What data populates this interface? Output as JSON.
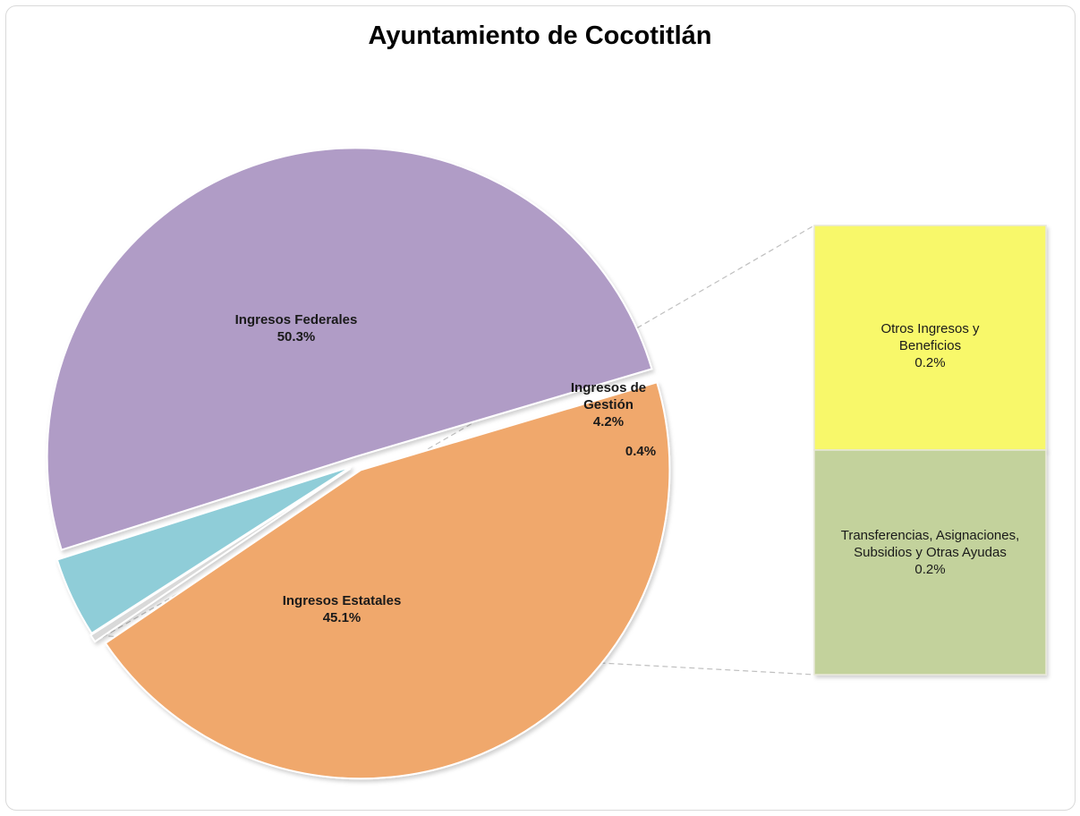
{
  "chart_data": {
    "type": "pie",
    "title": "Ayuntamiento de Cocotitlán",
    "slices": [
      {
        "name": "Ingresos Federales",
        "value": 50.3,
        "label": "50.3%",
        "color": "#b09cc6"
      },
      {
        "name": "Ingresos de Gestión",
        "value": 4.2,
        "label": "4.2%",
        "color": "#8fcdd8"
      },
      {
        "name": "",
        "value": 0.4,
        "label": "0.4%",
        "color": "#d9d9d9"
      },
      {
        "name": "Ingresos Estatales",
        "value": 45.1,
        "label": "45.1%",
        "color": "#f0a86c"
      }
    ],
    "breakdown": {
      "of_slice": "0.4%",
      "type": "stacked-bar",
      "items": [
        {
          "name": "Otros Ingresos y Beneficios",
          "value": 0.2,
          "label": "0.2%",
          "color": "#f8f86a"
        },
        {
          "name": "Transferencias, Asignaciones, Subsidios y Otras Ayudas",
          "value": 0.2,
          "label": "0.2%",
          "color": "#c3d29c"
        }
      ]
    }
  }
}
